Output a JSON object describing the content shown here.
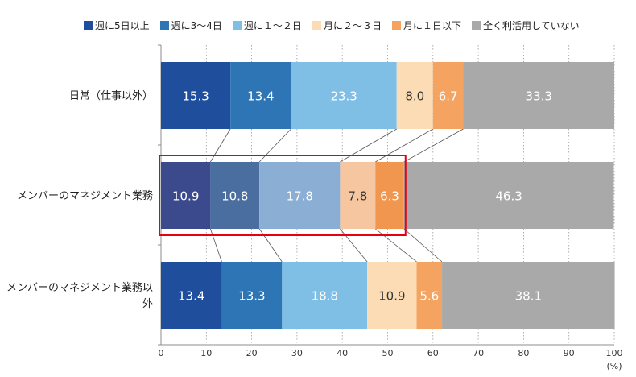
{
  "chart_data": {
    "type": "bar",
    "orientation": "horizontal",
    "stacked": true,
    "categories": [
      "日常（仕事以外）",
      "メンバーのマネジメント業務",
      "メンバーのマネジメント業務以外"
    ],
    "series": [
      {
        "name": "週に5日以上",
        "values": [
          15.3,
          10.9,
          13.4
        ],
        "color": "#1f4e9c",
        "highlight_color": "#3a4a8c"
      },
      {
        "name": "週に3～4日",
        "values": [
          13.4,
          10.8,
          13.3
        ],
        "color": "#2e75b6",
        "highlight_color": "#4a6ea0"
      },
      {
        "name": "週に１～２日",
        "values": [
          23.3,
          17.8,
          18.8
        ],
        "color": "#7fbfe6",
        "highlight_color": "#8aaed4"
      },
      {
        "name": "月に２～３日",
        "values": [
          8.0,
          7.8,
          10.9
        ],
        "color": "#fbdcb4",
        "highlight_color": "#f5c6a0"
      },
      {
        "name": "月に１日以下",
        "values": [
          6.7,
          6.3,
          5.6
        ],
        "color": "#f4a460",
        "highlight_color": "#f0964f"
      },
      {
        "name": "全く利活用していない",
        "values": [
          33.3,
          46.3,
          38.1
        ],
        "color": "#a9a9a9",
        "highlight_color": "#a9a9a9"
      }
    ],
    "xlim": [
      0,
      100
    ],
    "xticks": [
      0,
      10,
      20,
      30,
      40,
      50,
      60,
      70,
      80,
      90,
      100
    ],
    "xunit": "(%)",
    "grid": true,
    "legend": "top",
    "highlighted_category": 1,
    "highlight_box_color": "#e60012"
  }
}
